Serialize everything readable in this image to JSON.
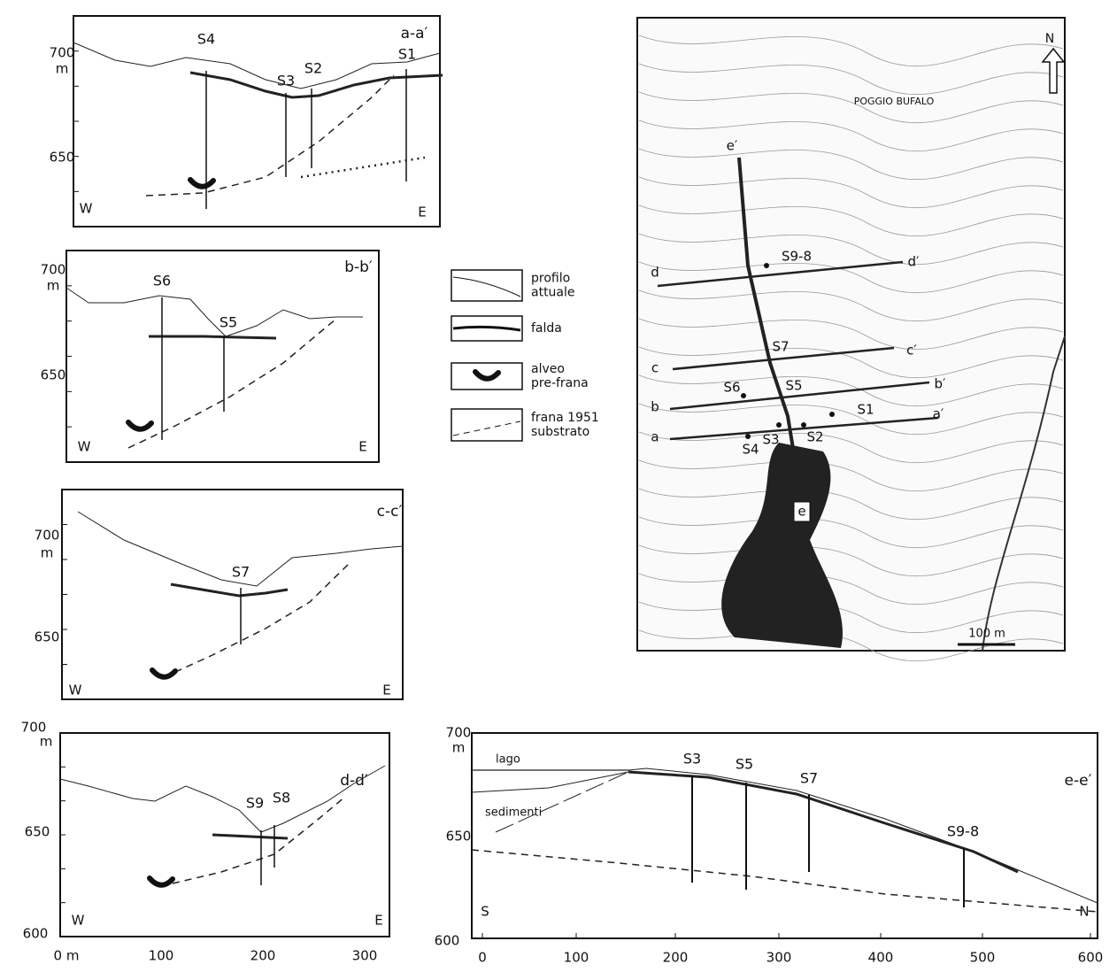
{
  "panels": [
    {
      "label": "a-a′",
      "y_labels": [
        "700",
        "m",
        "650"
      ],
      "west": "W",
      "east": "E",
      "wells": [
        "S4",
        "S3",
        "S2",
        "S1"
      ]
    },
    {
      "label": "b-b′",
      "y_labels": [
        "700",
        "m",
        "650"
      ],
      "west": "W",
      "east": "E",
      "wells": [
        "S6",
        "S5"
      ]
    },
    {
      "label": "c-c′",
      "y_labels": [
        "700",
        "m",
        "650"
      ],
      "west": "W",
      "east": "E",
      "wells": [
        "S7"
      ]
    },
    {
      "label": "d-d′",
      "y_labels": [
        "700",
        "m",
        "650",
        "600"
      ],
      "west": "W",
      "east": "E",
      "wells": [
        "S9",
        "S8"
      ],
      "x_labels": [
        "0 m",
        "100",
        "200",
        "300"
      ]
    }
  ],
  "legend": [
    {
      "lines": [
        "profilo",
        "attuale"
      ]
    },
    {
      "lines": [
        "falda"
      ]
    },
    {
      "lines": [
        "alveo",
        "pre-frana"
      ]
    },
    {
      "lines": [
        "frana 1951",
        "substrato"
      ]
    }
  ],
  "section_e": {
    "label": "e-e′",
    "y_labels": [
      "700",
      "m",
      "650",
      "600"
    ],
    "south": "S",
    "north": "N",
    "lago": "lago",
    "sedimenti": "sedimenti",
    "wells": [
      "S3",
      "S5",
      "S7",
      "S9-8"
    ],
    "x_labels": [
      "0",
      "100",
      "200",
      "300",
      "400",
      "500",
      "600"
    ]
  },
  "map": {
    "north": "N",
    "place": "POGGIO BUFALO",
    "labels": [
      "e′",
      "S9-8",
      "d",
      "d′",
      "S7",
      "c",
      "c′",
      "S6",
      "S5",
      "b",
      "b′",
      "S1",
      "a′",
      "a",
      "S4",
      "S3",
      "S2",
      "e"
    ],
    "scale": "100 m"
  }
}
